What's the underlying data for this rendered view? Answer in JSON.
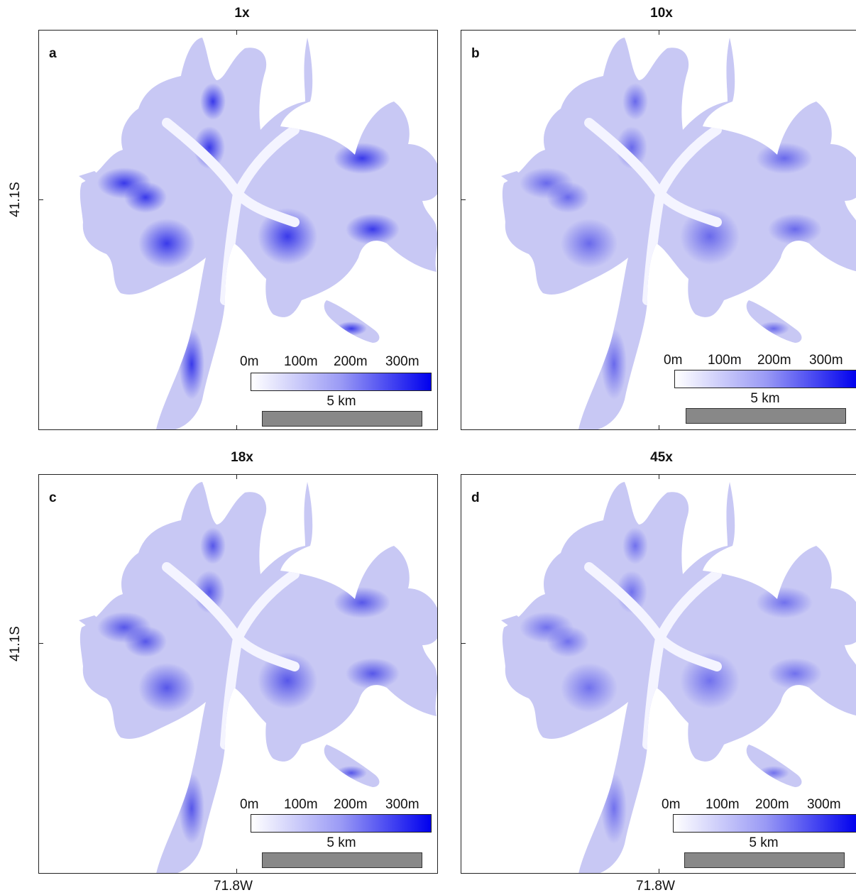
{
  "figure": {
    "y_axis_label": "41.1S",
    "x_axis_label": "71.8W",
    "panels": [
      {
        "id": "a",
        "title": "1x",
        "letter": "a",
        "peak_color": "#2020e8",
        "intensity": 0.85
      },
      {
        "id": "b",
        "title": "10x",
        "letter": "b",
        "peak_color": "#2a2ae6",
        "intensity": 0.6
      },
      {
        "id": "c",
        "title": "18x",
        "letter": "c",
        "peak_color": "#2626e4",
        "intensity": 0.7
      },
      {
        "id": "d",
        "title": "45x",
        "letter": "d",
        "peak_color": "#2a2ae8",
        "intensity": 0.55
      }
    ],
    "colorbar": {
      "tick_labels": [
        "0m",
        "100m",
        "200m",
        "300m"
      ],
      "min_color": "#ffffff",
      "max_color": "#0000ee"
    },
    "scale_bar": {
      "label": "5 km"
    }
  }
}
